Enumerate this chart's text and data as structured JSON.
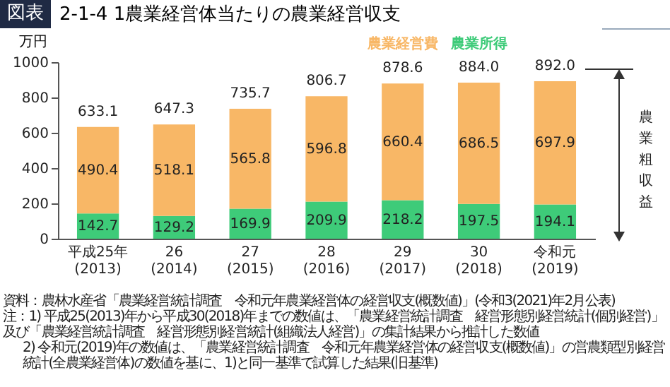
{
  "chart_data": {
    "type": "bar",
    "title": "図表 2-1-4 1農業経営体当たりの農業経営収支",
    "ylabel": "万円",
    "categories": [
      "平成25年\n(2013)",
      "26\n(2014)",
      "27\n(2015)",
      "28\n(2016)",
      "29\n(2017)",
      "30\n(2018)",
      "令和元\n(2019)"
    ],
    "series": [
      {
        "name": "農業所得",
        "color": "#3ecb79",
        "values": [
          142.7,
          129.2,
          169.9,
          209.9,
          218.2,
          197.5,
          194.1
        ]
      },
      {
        "name": "農業経営費",
        "color": "#f8b766",
        "values": [
          490.4,
          518.1,
          565.8,
          596.8,
          660.4,
          686.5,
          697.9
        ]
      }
    ],
    "stacked": true,
    "data_labels": true,
    "totals": [
      "633.1",
      "647.3",
      "735.7",
      "806.7",
      "878.6",
      "884.0",
      "892.0"
    ],
    "ylim": [
      0,
      1000
    ],
    "yticks": [
      0,
      200,
      400,
      600,
      800,
      1000
    ],
    "grid": false,
    "legend": false,
    "annotations": [
      "農業粗収益",
      "資料：農林水産省「農業経営統計調査　令和元年農業経営体の経営収支(概数値)」(令和3(2021)年2月公表)",
      "注：1) 平成25(2013)年から平成30(2018)年までの数値は、「農業経営統計調査　経営形態別経営統計(個別経営)」及び「農業経営統計調査　経営形態別経営統計(組織法人経営)」の集計結果から推計した数値",
      "2) 令和元(2019)年の数値は、「農業経営統計調査　令和元年農業経営体の経営収支(概数値)」の営農類型別経営統計(全農業経営体)の数値を基に、1)と同一基準で試算した結果(旧基準)"
    ]
  }
}
